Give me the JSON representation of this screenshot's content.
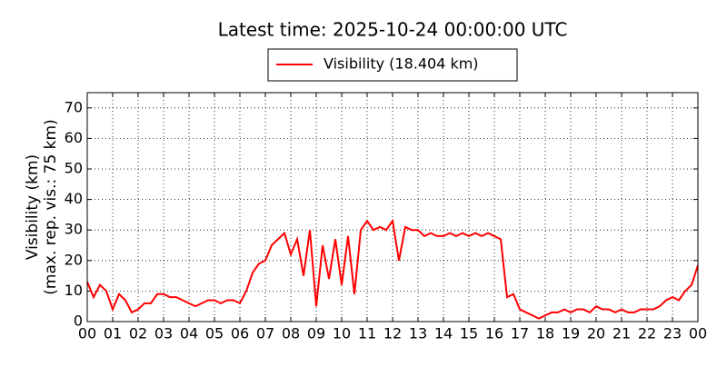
{
  "chart_data": {
    "type": "line",
    "title": "Latest time: 2025-10-24 00:00:00 UTC",
    "ylabel": [
      "Visibility (km)",
      "(max. rep. vis.: 75 km)"
    ],
    "x": [
      0,
      0.25,
      0.5,
      0.75,
      1,
      1.25,
      1.5,
      1.75,
      2,
      2.25,
      2.5,
      2.75,
      3,
      3.25,
      3.5,
      3.75,
      4,
      4.25,
      4.5,
      4.75,
      5,
      5.25,
      5.5,
      5.75,
      6,
      6.25,
      6.5,
      6.75,
      7,
      7.25,
      7.5,
      7.75,
      8,
      8.25,
      8.5,
      8.75,
      9,
      9.25,
      9.5,
      9.75,
      10,
      10.25,
      10.5,
      10.75,
      11,
      11.25,
      11.5,
      11.75,
      12,
      12.25,
      12.5,
      12.75,
      13,
      13.25,
      13.5,
      13.75,
      14,
      14.25,
      14.5,
      14.75,
      15,
      15.25,
      15.5,
      15.75,
      16,
      16.25,
      16.5,
      16.75,
      17,
      17.25,
      17.5,
      17.75,
      18,
      18.25,
      18.5,
      18.75,
      19,
      19.25,
      19.5,
      19.75,
      20,
      20.25,
      20.5,
      20.75,
      21,
      21.25,
      21.5,
      21.75,
      22,
      22.25,
      22.5,
      22.75,
      23,
      23.25,
      23.5,
      23.75,
      24
    ],
    "series": [
      {
        "name": "Visibility (18.404 km)",
        "color": "#ff0000",
        "values": [
          13,
          8,
          12,
          10,
          4,
          9,
          7,
          3,
          4,
          6,
          6,
          9,
          9,
          8,
          8,
          7,
          6,
          5,
          6,
          7,
          7,
          6,
          7,
          7,
          6,
          10,
          16,
          19,
          20,
          25,
          27,
          29,
          22,
          27,
          15,
          30,
          5,
          25,
          14,
          27,
          12,
          28,
          9,
          30,
          33,
          30,
          31,
          30,
          33,
          20,
          31,
          30,
          30,
          28,
          29,
          28,
          28,
          29,
          28,
          29,
          28,
          29,
          28,
          29,
          28,
          27,
          8,
          9,
          4,
          3,
          2,
          1,
          2,
          3,
          3,
          4,
          3,
          4,
          4,
          3,
          5,
          4,
          4,
          3,
          4,
          3,
          3,
          4,
          4,
          4,
          5,
          7,
          8,
          7,
          10,
          12,
          18.404
        ]
      }
    ],
    "xlim": [
      0,
      24
    ],
    "xticks": [
      {
        "value": 0,
        "label": "00"
      },
      {
        "value": 1,
        "label": "01"
      },
      {
        "value": 2,
        "label": "02"
      },
      {
        "value": 3,
        "label": "03"
      },
      {
        "value": 4,
        "label": "04"
      },
      {
        "value": 5,
        "label": "05"
      },
      {
        "value": 6,
        "label": "06"
      },
      {
        "value": 7,
        "label": "07"
      },
      {
        "value": 8,
        "label": "08"
      },
      {
        "value": 9,
        "label": "09"
      },
      10,
      11,
      12,
      13,
      14,
      15,
      16,
      17,
      18,
      19,
      20,
      21,
      22,
      23,
      {
        "value": 24,
        "label": "00"
      }
    ],
    "ylim": [
      0,
      75
    ],
    "yticks": [
      0,
      10,
      20,
      30,
      40,
      50,
      60,
      70
    ],
    "grid": true
  }
}
